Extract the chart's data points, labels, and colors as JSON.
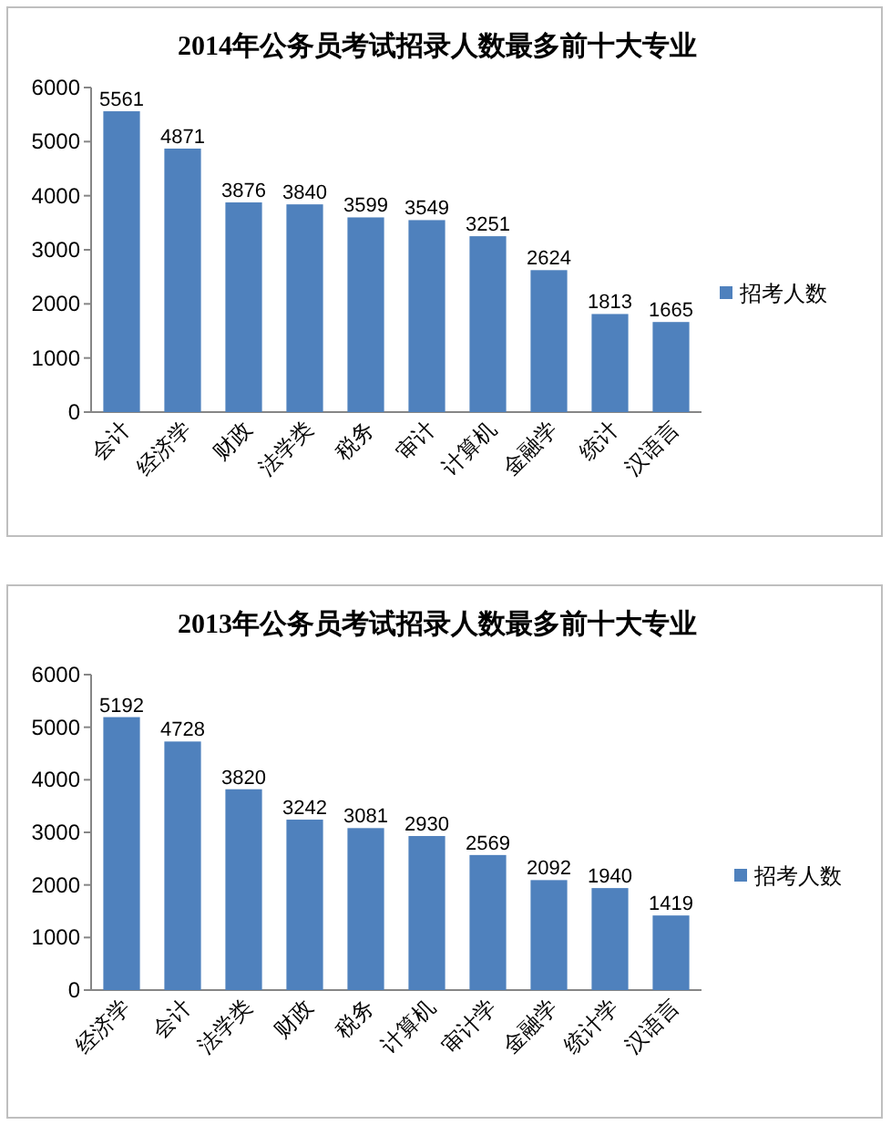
{
  "chart_data": [
    {
      "type": "bar",
      "title": "2014年公务员考试招录人数最多前十大专业",
      "categories": [
        "会计",
        "经济学",
        "财政",
        "法学类",
        "税务",
        "审计",
        "计算机",
        "金融学",
        "统计",
        "汉语言"
      ],
      "series": [
        {
          "name": "招考人数",
          "color": "#4f81bd",
          "values": [
            5561,
            4871,
            3876,
            3840,
            3599,
            3549,
            3251,
            2624,
            1813,
            1665
          ]
        }
      ],
      "ylim": [
        0,
        6000
      ],
      "yticks": [
        0,
        1000,
        2000,
        3000,
        4000,
        5000,
        6000
      ],
      "data_labels": true,
      "legend": "right",
      "grid": false
    },
    {
      "type": "bar",
      "title": "2013年公务员考试招录人数最多前十大专业",
      "categories": [
        "经济学",
        "会计",
        "法学类",
        "财政",
        "税务",
        "计算机",
        "审计学",
        "金融学",
        "统计学",
        "汉语言"
      ],
      "series": [
        {
          "name": "招考人数",
          "color": "#4f81bd",
          "values": [
            5192,
            4728,
            3820,
            3242,
            3081,
            2930,
            2569,
            2092,
            1940,
            1419
          ]
        }
      ],
      "ylim": [
        0,
        6000
      ],
      "yticks": [
        0,
        1000,
        2000,
        3000,
        4000,
        5000,
        6000
      ],
      "data_labels": true,
      "legend": "right",
      "grid": false
    }
  ]
}
